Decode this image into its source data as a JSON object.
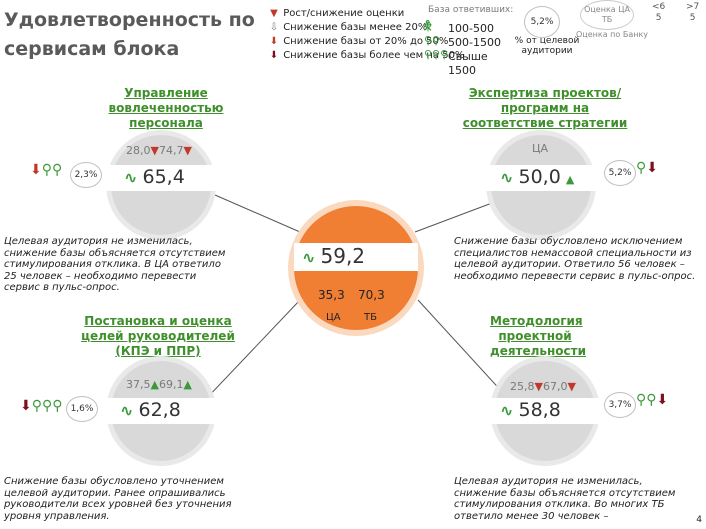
{
  "title": "Удовлетворенность по сервисам блока",
  "legend": {
    "up_down": "Рост/снижение оценки",
    "base_lt20": "Снижение базы менее 20%",
    "base_20_50": "Снижение базы от 20% до 50%",
    "base_gt50": "Снижение базы более чем на 50%"
  },
  "base": {
    "header": "База ответивших:",
    "ranges": [
      "100-500",
      "500-1500",
      "Свыше 1500"
    ]
  },
  "pct_legend": {
    "value": "5,2%",
    "label": "% от целевой аудитории"
  },
  "header_right": {
    "ocenka_ca": "Оценка ЦА",
    "tb": "ТБ",
    "ocenka_bank": "Оценка по Банку",
    "lt6": "<6",
    "lt6_v": "5",
    "gt7": ">7",
    "gt7_v": "5"
  },
  "center": {
    "value": "59,2",
    "ca": "35,3",
    "tb": "70,3",
    "ca_label": "ЦА",
    "tb_label": "ТБ"
  },
  "services": [
    {
      "title": "Управление вовлеченностью персонала",
      "ca": "28,0",
      "tb": "74,7",
      "value": "65,4",
      "pct": "2,3%",
      "note": "Целевая аудитория не изменилась, снижение базы объясняется отсутствием стимулирования отклика. В ЦА ответило 25 человек – необходимо перевести сервис в пульс-опрос."
    },
    {
      "title": "Экспертиза проектов/программ на соответствие стратегии",
      "ca": "ЦА",
      "tb": "",
      "value": "50,0",
      "pct": "5,2%",
      "note": "Снижение базы обусловлено исключением специалистов немассовой специальности из целевой аудитории. Ответило 56 человек – необходимо перевести сервис в пульс-опрос."
    },
    {
      "title": "Постановка и оценка целей руководителей (КПЭ и ППР)",
      "ca": "37,5",
      "tb": "69,1",
      "value": "62,8",
      "pct": "1,6%",
      "note": "Снижение базы обусловлено уточнением целевой аудитории. Ранее опрашивались руководители всех уровней без уточнения уровня управления."
    },
    {
      "title": "Методология проектной деятельности",
      "ca": "25,8",
      "tb": "67,0",
      "value": "58,8",
      "pct": "3,7%",
      "note": "Целевая аудитория не изменилась, снижение базы объясняется отсутствием стимулирования отклика. Во многих ТБ ответило менее 30 человек –"
    }
  ],
  "page_number": "4",
  "colors": {
    "green": "#3a9a3a",
    "red": "#c0392b",
    "orange": "#f07f33",
    "circle": "#d9d9d9"
  }
}
